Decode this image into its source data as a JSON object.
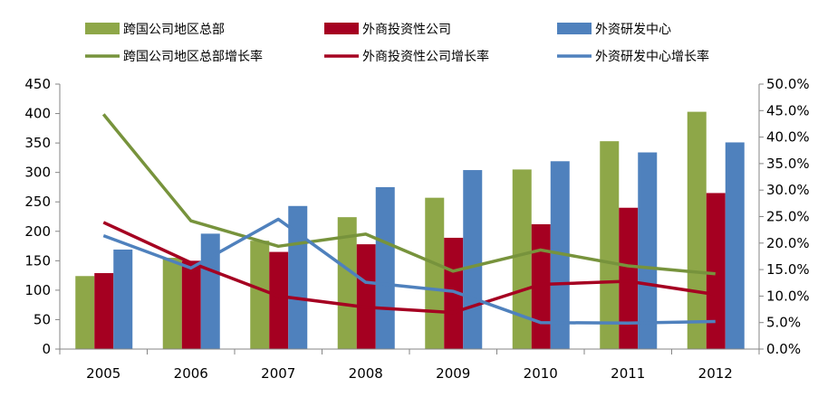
{
  "chart_data": {
    "type": "bar",
    "categories": [
      "2005",
      "2006",
      "2007",
      "2008",
      "2009",
      "2010",
      "2011",
      "2012"
    ],
    "series": [
      {
        "name": "跨国公司地区总部",
        "kind": "bar",
        "axis": "left",
        "color": "#8ea748",
        "values": [
          124,
          155,
          184,
          224,
          257,
          305,
          353,
          403
        ]
      },
      {
        "name": "外商投资性公司",
        "kind": "bar",
        "axis": "left",
        "color": "#a50021",
        "values": [
          129,
          150,
          165,
          178,
          189,
          212,
          240,
          265
        ]
      },
      {
        "name": "外资研发中心",
        "kind": "bar",
        "axis": "left",
        "color": "#4f81bd",
        "values": [
          169,
          196,
          243,
          275,
          304,
          319,
          334,
          351
        ]
      },
      {
        "name": "跨国公司地区总部增长率",
        "kind": "line",
        "axis": "right",
        "color": "#77933c",
        "values": [
          44.3,
          24.2,
          19.4,
          21.7,
          14.7,
          18.7,
          15.7,
          14.2
        ]
      },
      {
        "name": "外商投资性公司增长率",
        "kind": "line",
        "axis": "right",
        "color": "#a50021",
        "values": [
          23.9,
          16.3,
          10.0,
          7.9,
          6.9,
          12.2,
          12.8,
          10.3
        ]
      },
      {
        "name": "外资研发中心增长率",
        "kind": "line",
        "axis": "right",
        "color": "#4f81bd",
        "values": [
          21.4,
          15.3,
          24.5,
          12.6,
          10.9,
          5.0,
          4.9,
          5.2
        ]
      }
    ],
    "y_left": {
      "range": [
        0,
        450
      ],
      "step": 50,
      "tick_labels": [
        "0",
        "50",
        "100",
        "150",
        "200",
        "250",
        "300",
        "350",
        "400",
        "450"
      ]
    },
    "y_right": {
      "range": [
        0,
        50
      ],
      "step": 5,
      "unit": "%",
      "tick_labels": [
        "0.0%",
        "5.0%",
        "10.0%",
        "15.0%",
        "20.0%",
        "25.0%",
        "30.0%",
        "35.0%",
        "40.0%",
        "45.0%",
        "50.0%"
      ]
    },
    "grid": false,
    "legend_position": "top"
  }
}
